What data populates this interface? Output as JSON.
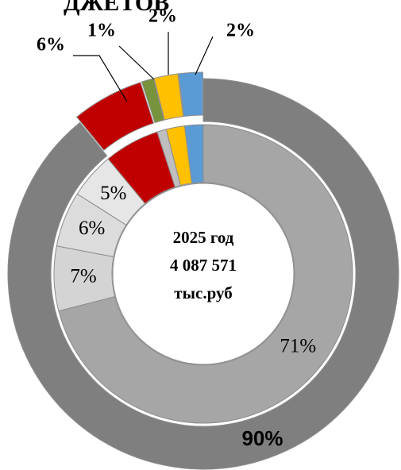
{
  "chart_data": [
    {
      "type": "donut",
      "title": "ДЖЕТОВ",
      "center_text": [
        "2025 год",
        "4 087 571",
        "тыс.руб"
      ],
      "values": [
        90,
        6,
        1,
        2,
        2
      ],
      "value_labels": [
        "90%",
        "6%",
        "1%",
        "2%",
        "2%"
      ],
      "colors": [
        "#7f7f7f",
        "#c00000",
        "#77933c",
        "#ffc000",
        "#5b9bd5"
      ]
    },
    {
      "type": "donut",
      "values": [
        71,
        7,
        6,
        5,
        6,
        1,
        2,
        2
      ],
      "value_labels": [
        "71%",
        "7%",
        "6%",
        "5%",
        null,
        null,
        null,
        null
      ],
      "colors": [
        "#a6a6a6",
        "#d4d4d4",
        "#dcdcdc",
        "#e6e6e6",
        "#c00000",
        "#bfbfbf",
        "#ffc000",
        "#5b9bd5"
      ]
    }
  ]
}
